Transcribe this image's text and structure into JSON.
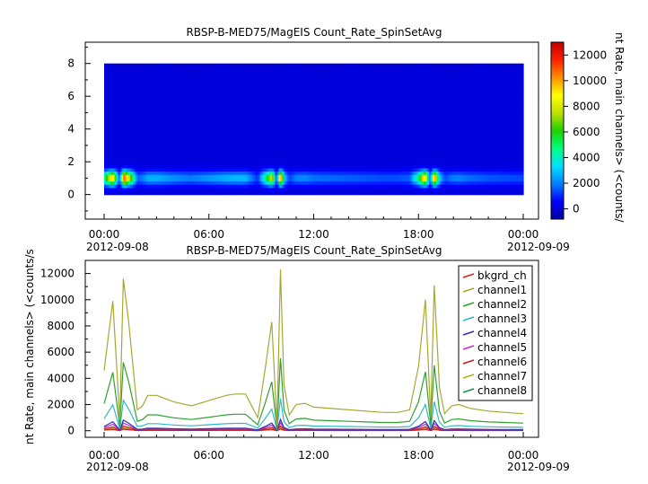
{
  "chart_data": [
    {
      "type": "heatmap",
      "title": "RBSP-B-MED75/MagEIS  Count_Rate_SpinSetAvg",
      "ylim": [
        -1.5,
        9.3
      ],
      "y_ticks": [
        "0",
        "2",
        "4",
        "6",
        "8"
      ],
      "x_ticks": [
        "00:00",
        "06:00",
        "12:00",
        "18:00",
        "00:00"
      ],
      "x_dates": [
        "2012-09-08",
        "2012-09-09"
      ],
      "colorbar": {
        "label": "nt Rate, main channels> (<counts/",
        "range": [
          -800,
          13000
        ],
        "ticks": [
          "0",
          "2000",
          "4000",
          "6000",
          "8000",
          "10000",
          "12000"
        ],
        "colors": [
          "#0000a0",
          "#0000ff",
          "#0080ff",
          "#00e0ff",
          "#00ff80",
          "#20d000",
          "#c0e000",
          "#ffff00",
          "#ff9000",
          "#ff2000",
          "#c00000"
        ]
      },
      "channels_y": [
        0,
        1,
        2,
        3,
        4,
        5,
        6,
        7,
        8
      ],
      "x_hours_range": [
        0,
        24
      ]
    },
    {
      "type": "line",
      "title": "RBSP-B-MED75/MagEIS  Count_Rate_SpinSetAvg",
      "ylabel": "nt Rate, main channels> (<counts/s",
      "ylim": [
        -500,
        13000
      ],
      "y_ticks": [
        "0",
        "2000",
        "4000",
        "6000",
        "8000",
        "10000",
        "12000"
      ],
      "x_ticks": [
        "00:00",
        "06:00",
        "12:00",
        "18:00",
        "00:00"
      ],
      "x_dates": [
        "2012-09-08",
        "2012-09-09"
      ],
      "x_hours_range": [
        0,
        24
      ],
      "legend_position": "top-right",
      "x": [
        0,
        0.5,
        0.9,
        1.1,
        1.4,
        1.9,
        2.2,
        2.5,
        3,
        4,
        5,
        6,
        6.5,
        7,
        7.5,
        8.1,
        8.8,
        9.2,
        9.6,
        9.9,
        10.1,
        10.3,
        10.6,
        11,
        11.5,
        12,
        13,
        14,
        15,
        16,
        16.8,
        17.5,
        18,
        18.4,
        18.7,
        18.9,
        19.2,
        19.5,
        19.9,
        20.3,
        21,
        22,
        23,
        24
      ],
      "reference": [
        4600,
        9900,
        800,
        11600,
        8400,
        1600,
        1900,
        2700,
        2700,
        2200,
        1900,
        2300,
        2500,
        2700,
        2800,
        2800,
        1000,
        4500,
        8300,
        400,
        12300,
        3500,
        1200,
        2000,
        2100,
        1800,
        1700,
        1600,
        1500,
        1400,
        1400,
        1600,
        4900,
        10000,
        1000,
        11100,
        3300,
        1300,
        1900,
        2000,
        1700,
        1500,
        1400,
        1300
      ],
      "series": [
        {
          "name": "bkgrd_ch",
          "color": "#cc2222",
          "scale": 0.01
        },
        {
          "name": "channel1",
          "color": "#a8a830",
          "scale": 1.0
        },
        {
          "name": "channel2",
          "color": "#30a030",
          "scale": 0.45
        },
        {
          "name": "channel3",
          "color": "#30b8c8",
          "scale": 0.2
        },
        {
          "name": "channel4",
          "color": "#3030b0",
          "scale": 0.07
        },
        {
          "name": "channel5",
          "color": "#c030c0",
          "scale": 0.05
        },
        {
          "name": "channel6",
          "color": "#c02020",
          "scale": 0.03
        },
        {
          "name": "channel7",
          "color": "#b0b020",
          "scale": 0.02
        },
        {
          "name": "channel8",
          "color": "#209040",
          "scale": 0.015
        }
      ]
    }
  ]
}
